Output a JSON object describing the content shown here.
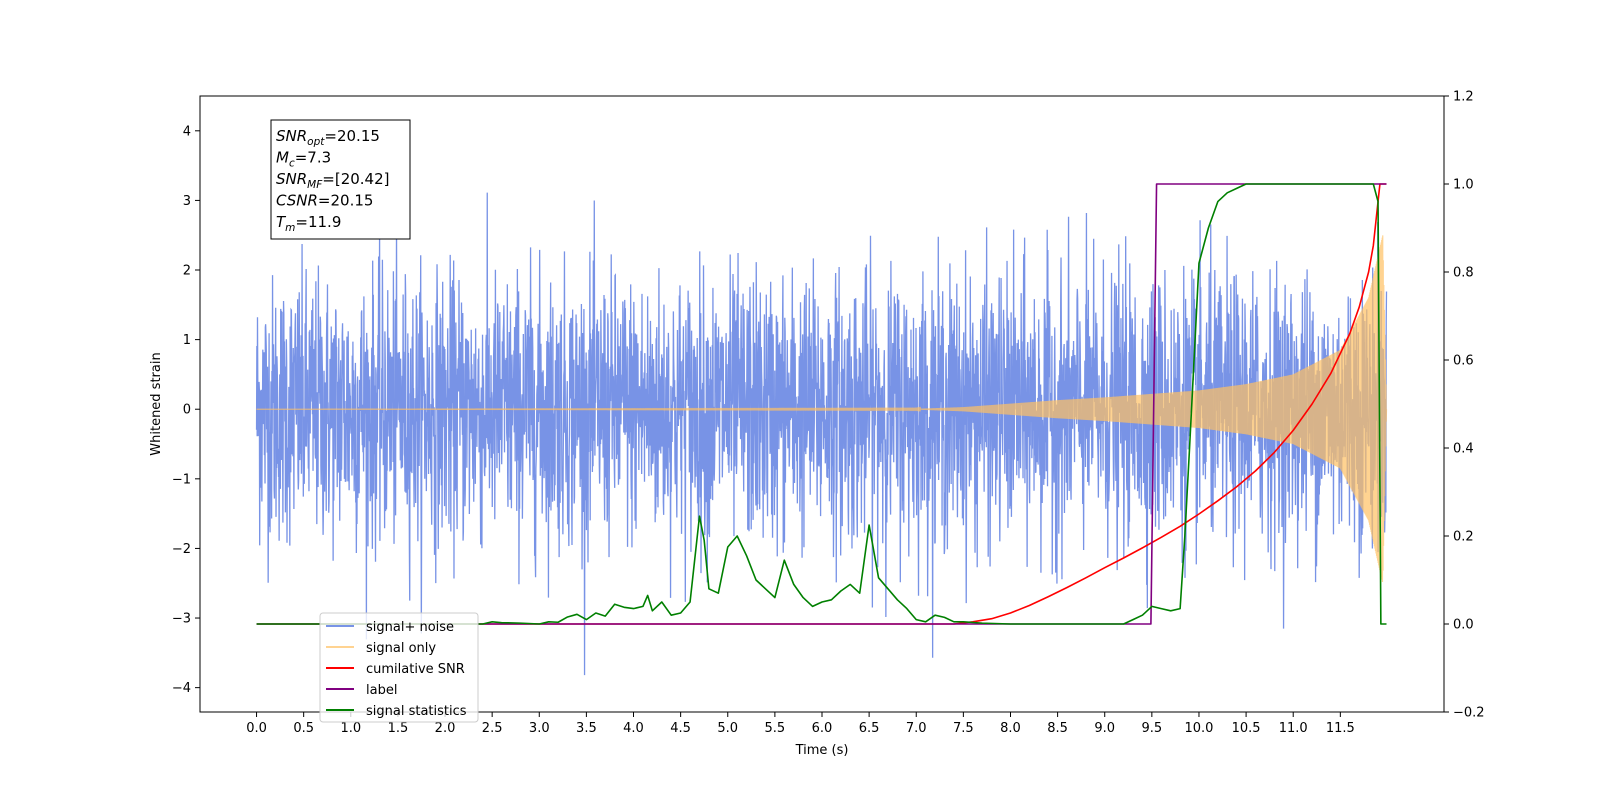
{
  "chart_data": {
    "type": "line",
    "xlabel": "Time (s)",
    "ylabel": "Whitened strain",
    "xlim": [
      -0.6,
      12.6
    ],
    "ylim": [
      -4.35,
      4.5
    ],
    "y2lim": [
      -0.2,
      1.2
    ],
    "x_ticks": [
      0.0,
      0.5,
      1.0,
      1.5,
      2.0,
      2.5,
      3.0,
      3.5,
      4.0,
      4.5,
      5.0,
      5.5,
      6.0,
      6.5,
      7.0,
      7.5,
      8.0,
      8.5,
      9.0,
      9.5,
      10.0,
      10.5,
      11.0,
      11.5
    ],
    "x_tick_labels": [
      "0.0",
      "0.5",
      "1.0",
      "1.5",
      "2.0",
      "2.5",
      "3.0",
      "3.5",
      "4.0",
      "4.5",
      "5.0",
      "5.5",
      "6.0",
      "6.5",
      "7.0",
      "7.5",
      "8.0",
      "8.5",
      "9.0",
      "9.5",
      "10.0",
      "10.5",
      "11.0",
      "11.5"
    ],
    "y_ticks": [
      -4,
      -3,
      -2,
      -1,
      0,
      1,
      2,
      3,
      4
    ],
    "y_tick_labels": [
      "−4",
      "−3",
      "−2",
      "−1",
      "0",
      "1",
      "2",
      "3",
      "4"
    ],
    "y2_ticks": [
      -0.2,
      0.0,
      0.2,
      0.4,
      0.6,
      0.8,
      1.0,
      1.2
    ],
    "y2_tick_labels": [
      "−0.2",
      "0.0",
      "0.2",
      "0.4",
      "0.6",
      "0.8",
      "1.0",
      "1.2"
    ],
    "grid": false,
    "legend_position": "lower-left",
    "info_box": {
      "lines": [
        {
          "base": "SNR",
          "sub": "opt",
          "value": "=20.15"
        },
        {
          "base": "M",
          "sub": "c",
          "value": "=7.3"
        },
        {
          "base": "SNR",
          "sub": "MF",
          "value": "=[20.42]"
        },
        {
          "base": "CSNR",
          "sub": "",
          "value": "=20.15"
        },
        {
          "base": "T",
          "sub": "m",
          "value": "=11.9"
        }
      ]
    },
    "series": [
      {
        "name": "signal+ noise",
        "color": "#7893e6",
        "axis": "left",
        "kind": "noise_band",
        "x_start": 0.0,
        "x_end": 11.99,
        "approx_envelope": {
          "upper_typical": 2.6,
          "lower_typical": -2.6,
          "max_peak": 4.12,
          "min_peak": -3.9
        }
      },
      {
        "name": "signal only",
        "color": "#ffc163",
        "axis": "left",
        "kind": "chirp",
        "x_start": 0.0,
        "x_end": 11.99,
        "envelope": [
          [
            0.0,
            0.0
          ],
          [
            7.0,
            0.005
          ],
          [
            7.5,
            0.03
          ],
          [
            8.0,
            0.08
          ],
          [
            8.5,
            0.13
          ],
          [
            9.0,
            0.17
          ],
          [
            9.5,
            0.22
          ],
          [
            10.0,
            0.27
          ],
          [
            10.5,
            0.36
          ],
          [
            11.0,
            0.5
          ],
          [
            11.5,
            0.85
          ],
          [
            11.8,
            1.6
          ],
          [
            11.9,
            2.2
          ],
          [
            11.95,
            2.5
          ],
          [
            11.99,
            0.0
          ]
        ]
      },
      {
        "name": "cumilative SNR",
        "color": "#ff0000",
        "axis": "right",
        "x": [
          0.0,
          7.2,
          7.4,
          7.6,
          7.8,
          8.0,
          8.2,
          8.4,
          8.6,
          8.8,
          9.0,
          9.2,
          9.4,
          9.6,
          9.8,
          10.0,
          10.2,
          10.4,
          10.6,
          10.8,
          11.0,
          11.2,
          11.4,
          11.6,
          11.7,
          11.8,
          11.85,
          11.9,
          11.92,
          11.99
        ],
        "y": [
          0.0,
          0.0,
          0.0,
          0.005,
          0.012,
          0.025,
          0.042,
          0.062,
          0.083,
          0.105,
          0.128,
          0.15,
          0.173,
          0.197,
          0.222,
          0.25,
          0.28,
          0.312,
          0.348,
          0.39,
          0.44,
          0.5,
          0.57,
          0.66,
          0.72,
          0.8,
          0.86,
          0.96,
          1.0,
          1.0
        ]
      },
      {
        "name": "label",
        "color": "#800080",
        "axis": "right",
        "x": [
          0.0,
          9.49,
          9.55,
          11.99
        ],
        "y": [
          0.0,
          0.0,
          1.0,
          1.0
        ]
      },
      {
        "name": "signal statistics",
        "color": "#008000",
        "axis": "right",
        "x": [
          0.0,
          2.4,
          2.5,
          2.6,
          2.8,
          3.0,
          3.1,
          3.2,
          3.3,
          3.4,
          3.5,
          3.6,
          3.7,
          3.8,
          3.9,
          4.0,
          4.1,
          4.15,
          4.2,
          4.3,
          4.4,
          4.5,
          4.6,
          4.7,
          4.75,
          4.8,
          4.9,
          5.0,
          5.1,
          5.2,
          5.3,
          5.4,
          5.5,
          5.6,
          5.7,
          5.8,
          5.9,
          6.0,
          6.1,
          6.2,
          6.3,
          6.4,
          6.5,
          6.6,
          6.7,
          6.8,
          6.9,
          7.0,
          7.1,
          7.2,
          7.3,
          7.4,
          7.5,
          7.7,
          8.0,
          8.5,
          9.0,
          9.2,
          9.3,
          9.4,
          9.5,
          9.6,
          9.7,
          9.8,
          9.85,
          9.9,
          10.0,
          10.1,
          10.2,
          10.3,
          10.4,
          10.5,
          10.6,
          10.8,
          11.0,
          11.5,
          11.85,
          11.9,
          11.93,
          11.99
        ],
        "y": [
          0.0,
          0.0,
          0.005,
          0.003,
          0.002,
          0.0,
          0.005,
          0.004,
          0.016,
          0.022,
          0.01,
          0.025,
          0.018,
          0.045,
          0.038,
          0.035,
          0.04,
          0.065,
          0.03,
          0.05,
          0.02,
          0.025,
          0.05,
          0.245,
          0.19,
          0.08,
          0.07,
          0.175,
          0.2,
          0.155,
          0.1,
          0.08,
          0.06,
          0.145,
          0.09,
          0.06,
          0.04,
          0.05,
          0.055,
          0.075,
          0.09,
          0.07,
          0.225,
          0.105,
          0.08,
          0.055,
          0.035,
          0.01,
          0.005,
          0.02,
          0.015,
          0.005,
          0.005,
          0.002,
          0.0,
          0.0,
          0.0,
          0.0,
          0.01,
          0.02,
          0.04,
          0.035,
          0.03,
          0.035,
          0.2,
          0.4,
          0.82,
          0.9,
          0.96,
          0.98,
          0.99,
          1.0,
          1.0,
          1.0,
          1.0,
          1.0,
          1.0,
          0.96,
          0.0,
          0.0
        ]
      }
    ]
  }
}
